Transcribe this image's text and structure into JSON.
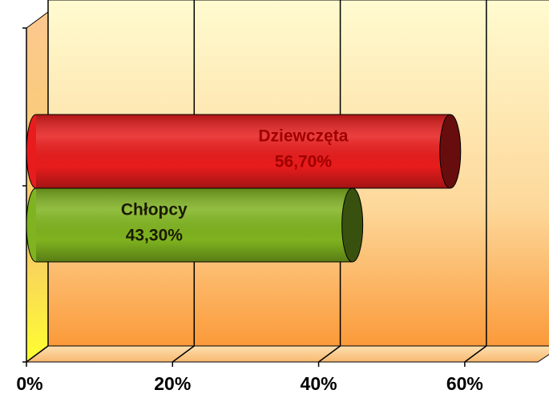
{
  "chart_data": {
    "type": "bar",
    "orientation": "horizontal",
    "series": [
      {
        "name": "Dziewczęta",
        "color": "#e81c1c",
        "values": [
          56.7
        ],
        "value_labels": [
          "56,70%"
        ]
      },
      {
        "name": "Chłopcy",
        "color": "#7fb31f",
        "values": [
          43.3
        ],
        "value_labels": [
          "43,30%"
        ]
      }
    ],
    "xlim": [
      0,
      70
    ],
    "xticks": [
      {
        "value": 0,
        "label": "0%"
      },
      {
        "value": 20,
        "label": "20%"
      },
      {
        "value": 40,
        "label": "40%"
      },
      {
        "value": 60,
        "label": "60%"
      }
    ],
    "grid": true
  }
}
